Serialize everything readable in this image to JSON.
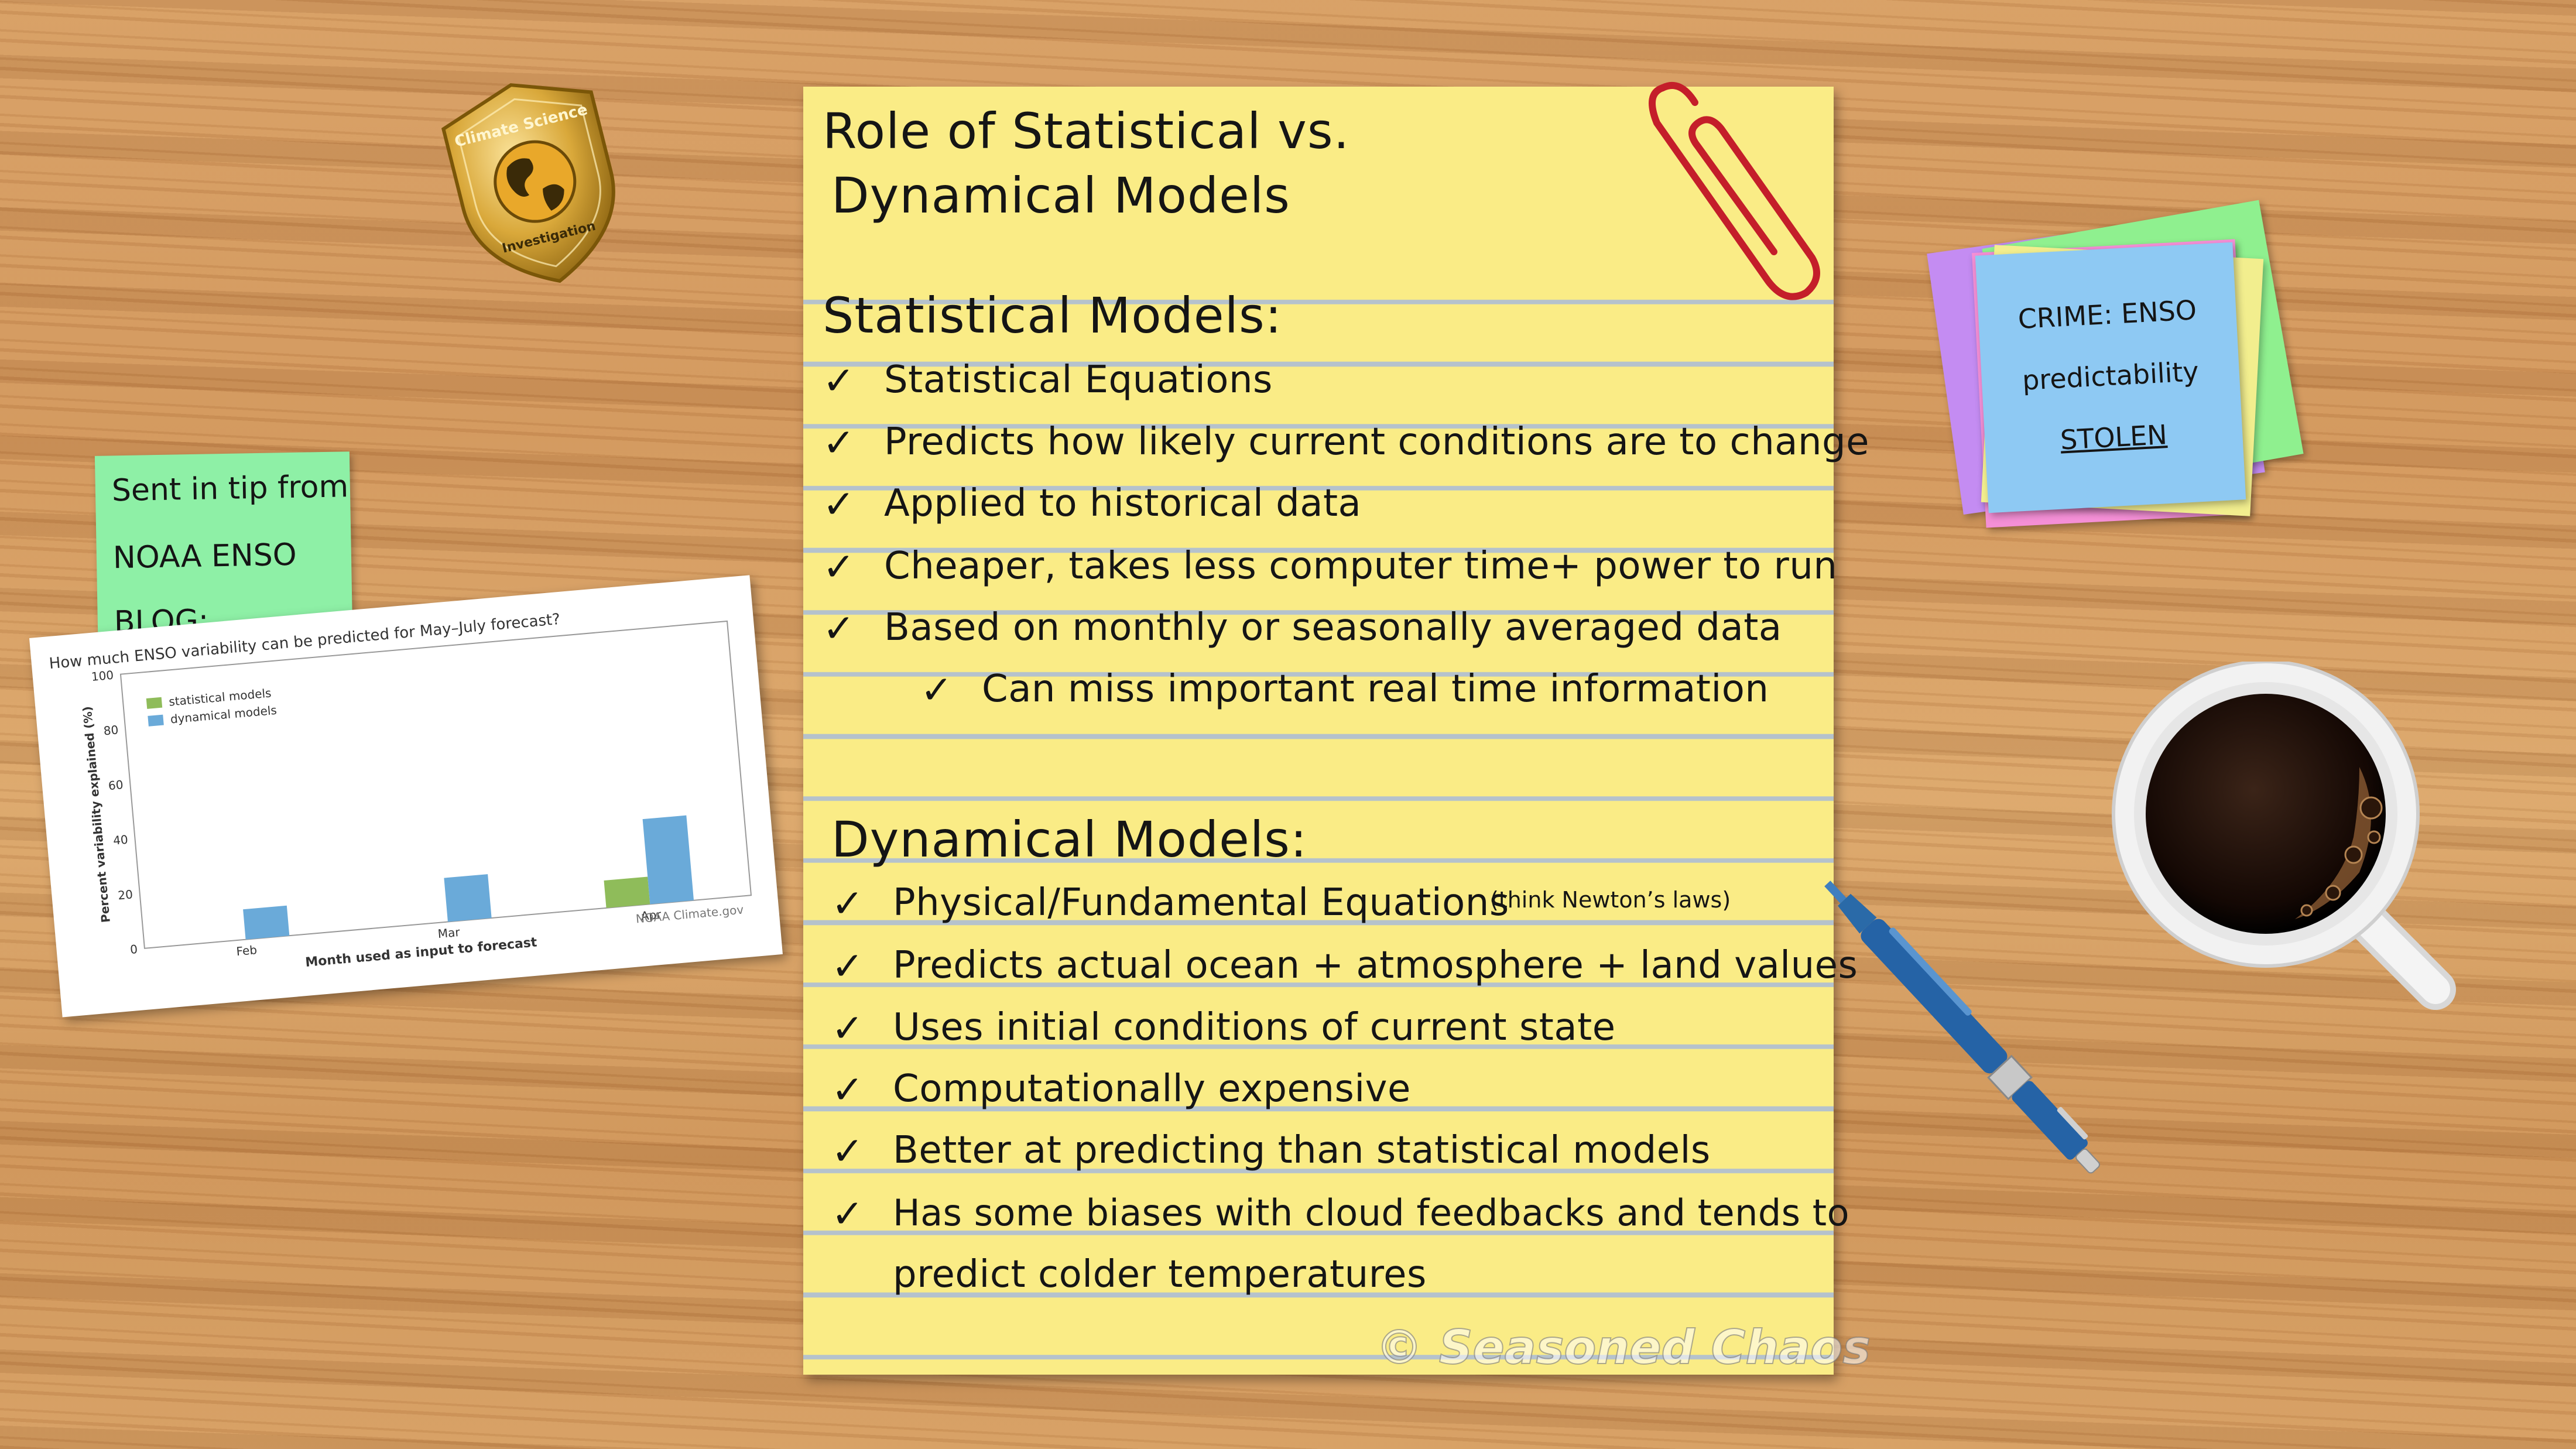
{
  "notepad": {
    "title_line1": "Role of Statistical vs.",
    "title_line2": "Dynamical Models",
    "statistical": {
      "heading": "Statistical Models:",
      "items": [
        "Statistical Equations",
        "Predicts how likely current conditions are to change",
        "Applied to historical data",
        "Cheaper, takes less computer time+ power to run",
        "Based on monthly or seasonally averaged data"
      ],
      "subitem": "Can miss important real time information"
    },
    "dynamical": {
      "heading": "Dynamical Models:",
      "items": [
        "Physical/Fundamental Equations",
        "Predicts actual ocean + atmosphere + land values",
        "Uses initial conditions of current state",
        "Computationally expensive",
        "Better at predicting than statistical models",
        "Has some biases with cloud feedbacks and tends to"
      ],
      "first_item_note": "(think Newton’s laws)",
      "last_item_continued": "predict colder temperatures"
    },
    "check_glyph": "✓",
    "watermark": "© Seasoned Chaos",
    "paper_color": "#faec86",
    "line_color": "#b5c2cc"
  },
  "tip_note": {
    "line1": "Sent in tip from",
    "line2": "NOAA ENSO",
    "line3": "BLOG:",
    "color": "#8ef0a6"
  },
  "crime_note": {
    "line1": "CRIME: ENSO",
    "line2": "predictability",
    "line3": "STOLEN",
    "color": "#8ec9f3"
  },
  "badge": {
    "line1": "Climate Science",
    "line2": "Investigation",
    "icon": "globe-icon"
  },
  "icons": [
    "paperclip-icon",
    "pen-icon",
    "coffee-cup-icon",
    "badge-icon"
  ],
  "chart_data": {
    "type": "bar",
    "title": "How much ENSO variability can be predicted for May–July forecast?",
    "categories": [
      "Feb",
      "Mar",
      "Apr"
    ],
    "series": [
      {
        "name": "statistical models",
        "values": [
          0,
          0,
          10
        ],
        "color": "#8fbc5a"
      },
      {
        "name": "dynamical models",
        "values": [
          11,
          16,
          31
        ],
        "color": "#6aaad9"
      }
    ],
    "xlabel": "Month used as input to forecast",
    "ylabel": "Percent variability explained (%)",
    "yticks": [
      0,
      20,
      40,
      60,
      80,
      100
    ],
    "ylim": [
      0,
      100
    ],
    "legend": "top-left",
    "source": "NOAA Climate.gov"
  }
}
